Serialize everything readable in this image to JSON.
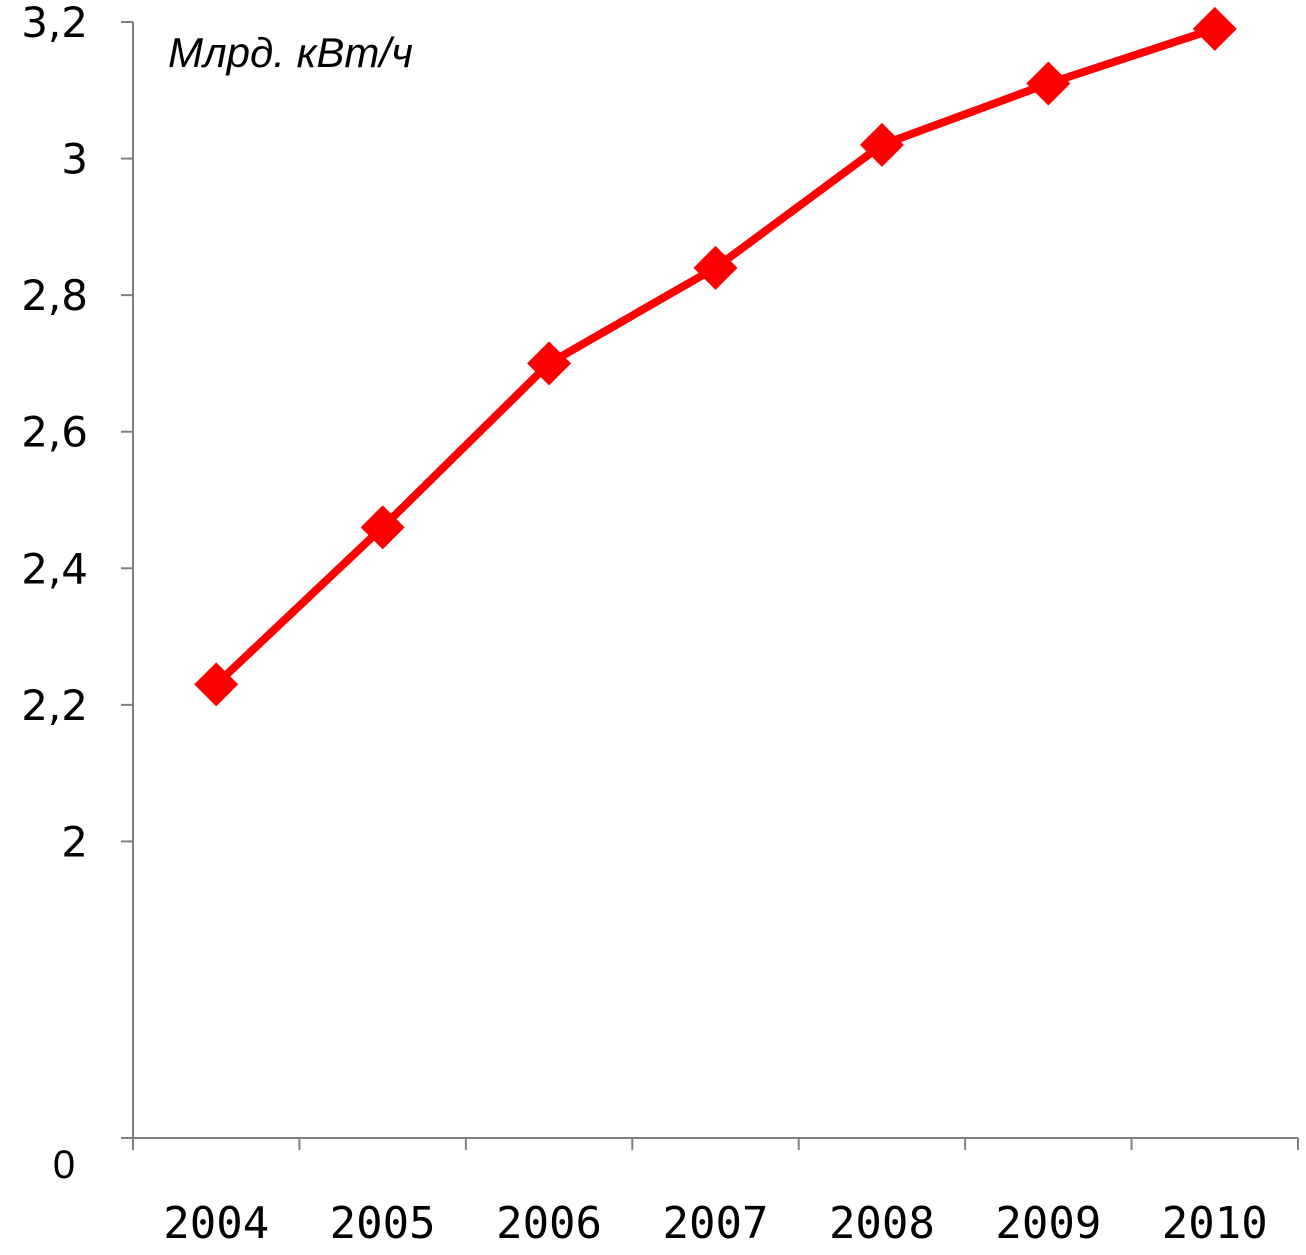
{
  "chart_data": {
    "type": "line",
    "title": "",
    "xlabel": "",
    "ylabel": "",
    "unit_label": "Млрд. кВт/ч",
    "zero_label": "0",
    "categories": [
      "2004",
      "2005",
      "2006",
      "2007",
      "2008",
      "2009",
      "2010"
    ],
    "series": [
      {
        "color": "#ff0000",
        "marker": "diamond",
        "values": [
          2.23,
          2.46,
          2.7,
          2.84,
          3.02,
          3.11,
          3.19
        ]
      }
    ],
    "y_ticks": [
      "2",
      "2,2",
      "2,4",
      "2,6",
      "2,8",
      "3",
      "3,2"
    ],
    "y_tick_values": [
      2.0,
      2.2,
      2.4,
      2.6,
      2.8,
      3.0,
      3.2
    ],
    "ylim": [
      1.8,
      3.2
    ],
    "y_axis_break": true,
    "grid": false,
    "legend": "none"
  }
}
